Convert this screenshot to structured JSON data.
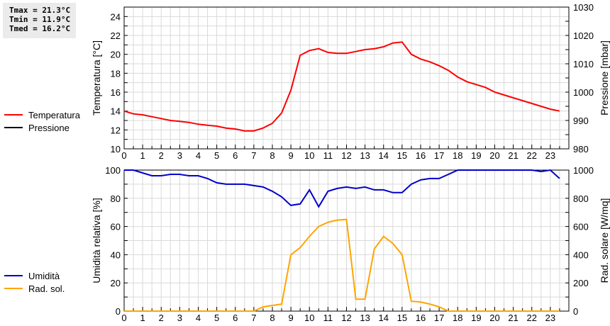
{
  "stats": {
    "tmax": "Tmax = 21.3°C",
    "tmin": "Tmin = 11.9°C",
    "tmed": "Tmed = 16.2°C"
  },
  "legend_top": [
    {
      "label": "Temperatura",
      "color": "#ff0000"
    },
    {
      "label": "Pressione",
      "color": "#000000"
    }
  ],
  "legend_bottom": [
    {
      "label": "Umidità",
      "color": "#0000cc"
    },
    {
      "label": "Rad. sol.",
      "color": "#ffa500"
    }
  ],
  "chart_data": [
    {
      "type": "line",
      "title": "",
      "xlabel": "",
      "ylabel": "Temperatura [°C]",
      "y2label": "Pressione [mbar]",
      "xlim": [
        0,
        24
      ],
      "ylim": [
        10,
        25
      ],
      "y2lim": [
        980,
        1030
      ],
      "xticks": [
        0,
        1,
        2,
        3,
        4,
        5,
        6,
        7,
        8,
        9,
        10,
        11,
        12,
        13,
        14,
        15,
        16,
        17,
        18,
        19,
        20,
        21,
        22,
        23
      ],
      "yticks": [
        10,
        12,
        14,
        16,
        18,
        20,
        22,
        24
      ],
      "y2ticks": [
        980,
        990,
        1000,
        1010,
        1020,
        1030
      ],
      "grid": true,
      "legend_position": "left",
      "x": [
        0,
        0.5,
        1,
        1.5,
        2,
        2.5,
        3,
        3.5,
        4,
        4.5,
        5,
        5.5,
        6,
        6.5,
        7,
        7.5,
        8,
        8.5,
        9,
        9.5,
        10,
        10.5,
        11,
        11.5,
        12,
        12.5,
        13,
        13.5,
        14,
        14.5,
        15,
        15.5,
        16,
        16.5,
        17,
        17.5,
        18,
        18.5,
        19,
        19.5,
        20,
        20.5,
        21,
        21.5,
        22,
        22.5,
        23,
        23.5
      ],
      "series": [
        {
          "name": "Temperatura",
          "color": "#ff0000",
          "axis": "left",
          "values": [
            14.0,
            13.7,
            13.6,
            13.4,
            13.2,
            13.0,
            12.9,
            12.8,
            12.6,
            12.5,
            12.4,
            12.2,
            12.1,
            11.9,
            11.9,
            12.2,
            12.7,
            13.8,
            16.2,
            19.9,
            20.4,
            20.6,
            20.2,
            20.1,
            20.1,
            20.3,
            20.5,
            20.6,
            20.8,
            21.2,
            21.3,
            20.0,
            19.5,
            19.2,
            18.8,
            18.3,
            17.6,
            17.1,
            16.8,
            16.5,
            16.0,
            15.7,
            15.4,
            15.1,
            14.8,
            14.5,
            14.2,
            14.0
          ]
        },
        {
          "name": "Pressione",
          "color": "#000000",
          "axis": "right",
          "values": []
        }
      ]
    },
    {
      "type": "line",
      "title": "",
      "xlabel": "",
      "ylabel": "Umidità relativa [%]",
      "y2label": "Rad. solare [W/mq]",
      "xlim": [
        0,
        24
      ],
      "ylim": [
        0,
        100
      ],
      "y2lim": [
        0,
        1000
      ],
      "xticks": [
        0,
        1,
        2,
        3,
        4,
        5,
        6,
        7,
        8,
        9,
        10,
        11,
        12,
        13,
        14,
        15,
        16,
        17,
        18,
        19,
        20,
        21,
        22,
        23
      ],
      "yticks": [
        0,
        20,
        40,
        60,
        80,
        100
      ],
      "y2ticks": [
        0,
        200,
        400,
        600,
        800,
        1000
      ],
      "grid": true,
      "legend_position": "left",
      "x": [
        0,
        0.5,
        1,
        1.5,
        2,
        2.5,
        3,
        3.5,
        4,
        4.5,
        5,
        5.5,
        6,
        6.5,
        7,
        7.5,
        8,
        8.5,
        9,
        9.5,
        10,
        10.5,
        11,
        11.5,
        12,
        12.5,
        13,
        13.5,
        14,
        14.5,
        15,
        15.5,
        16,
        16.5,
        17,
        17.5,
        18,
        18.5,
        19,
        19.5,
        20,
        20.5,
        21,
        21.5,
        22,
        22.5,
        23,
        23.5
      ],
      "series": [
        {
          "name": "Umidità",
          "color": "#0000cc",
          "axis": "left",
          "values": [
            100,
            100,
            98,
            96,
            96,
            97,
            97,
            96,
            96,
            94,
            91,
            90,
            90,
            90,
            89,
            88,
            85,
            81,
            75,
            76,
            86,
            74,
            85,
            87,
            88,
            87,
            88,
            86,
            86,
            84,
            84,
            90,
            93,
            94,
            94,
            97,
            100,
            100,
            100,
            100,
            100,
            100,
            100,
            100,
            100,
            99,
            100,
            94
          ]
        },
        {
          "name": "Rad. sol.",
          "color": "#ffa500",
          "axis": "right",
          "values": [
            0,
            0,
            0,
            0,
            0,
            0,
            0,
            0,
            0,
            0,
            0,
            0,
            0,
            0,
            0,
            30,
            40,
            50,
            400,
            450,
            530,
            600,
            630,
            645,
            650,
            85,
            85,
            440,
            530,
            480,
            400,
            70,
            65,
            50,
            30,
            0,
            0,
            0,
            0,
            0,
            0,
            0,
            0,
            0,
            0,
            0,
            0,
            0
          ]
        }
      ]
    }
  ]
}
